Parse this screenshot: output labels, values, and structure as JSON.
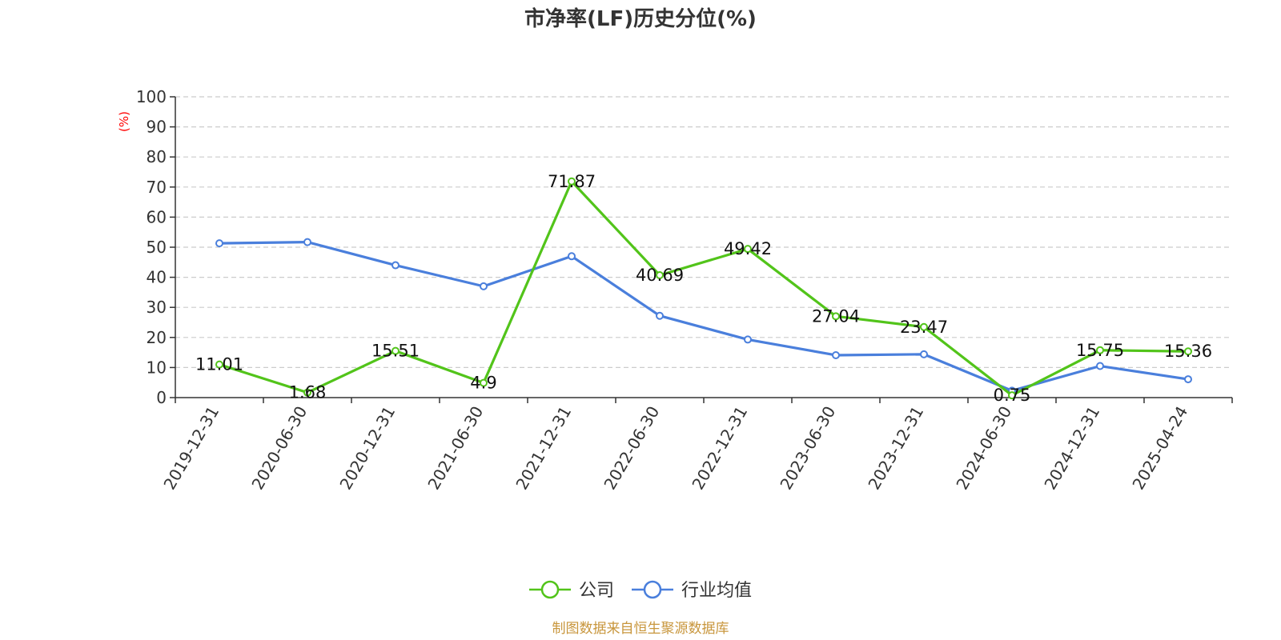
{
  "chart_data": {
    "type": "line",
    "title": "市净率(LF)历史分位(%)",
    "ylabel": "(%)",
    "ylim": [
      0,
      100
    ],
    "yticks": [
      0,
      10,
      20,
      30,
      40,
      50,
      60,
      70,
      80,
      90,
      100
    ],
    "grid": true,
    "legend_position": "bottom-center",
    "categories": [
      "2019-12-31",
      "2020-06-30",
      "2020-12-31",
      "2021-06-30",
      "2021-12-31",
      "2022-06-30",
      "2022-12-31",
      "2023-06-30",
      "2023-12-31",
      "2024-06-30",
      "2024-12-31",
      "2025-04-24"
    ],
    "series": [
      {
        "name": "公司",
        "color": "#52c41a",
        "values": [
          11.01,
          1.68,
          15.51,
          4.9,
          71.87,
          40.69,
          49.42,
          27.04,
          23.47,
          0.75,
          15.75,
          15.36
        ],
        "labels": [
          "11.01",
          "1.68",
          "15.51",
          "4.9",
          "71.87",
          "40.69",
          "49.42",
          "27.04",
          "23.47",
          "0.75",
          "15.75",
          "15.36"
        ],
        "show_labels": true
      },
      {
        "name": "行业均值",
        "color": "#4a7fdc",
        "values": [
          51.3,
          51.7,
          44.0,
          37.0,
          47.0,
          27.2,
          19.3,
          14.1,
          14.4,
          2.3,
          10.5,
          6.1
        ],
        "show_labels": false
      }
    ]
  },
  "footer": {
    "source": "制图数据来自恒生聚源数据库"
  }
}
